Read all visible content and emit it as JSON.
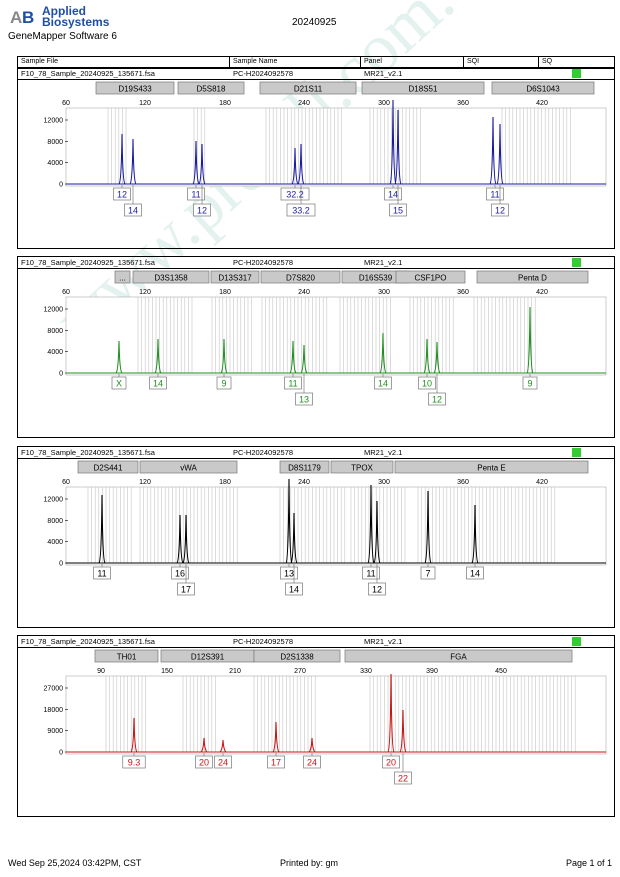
{
  "header": {
    "logo_line1": "Applied",
    "logo_line2": "Biosystems",
    "software": "GeneMapper Software 6",
    "date": "20240925"
  },
  "columns": {
    "sample_file": "Sample File",
    "sample_name": "Sample Name",
    "panel": "Panel",
    "sqi": "SQI",
    "sq": "SQ"
  },
  "watermark": "www.pro-ell.com.cn",
  "colors": {
    "blue": "#1a1aa0",
    "green": "#1f8f1f",
    "black": "#000000",
    "red": "#c81414",
    "status": "#33cc33"
  },
  "panels": [
    {
      "sample_file": "F10_78_Sample_20240925_135671.fsa",
      "sample_name": "PC-H2024092578",
      "panel_name": "MR21_v2.1",
      "color": "#1a1aa0",
      "x_ticks": [
        "60",
        "120",
        "180",
        "240",
        "300",
        "360",
        "420"
      ],
      "y_ticks": [
        "12000",
        "8000",
        "4000",
        "0"
      ],
      "markers": [
        "D19S433",
        "D5S818",
        "D21S11",
        "D18S51",
        "D6S1043"
      ],
      "alleles_top": [
        "12",
        "11",
        "32.2",
        "14",
        "11"
      ],
      "alleles_bottom": [
        "14",
        "12",
        "33.2",
        "15",
        "12"
      ]
    },
    {
      "sample_file": "F10_78_Sample_20240925_135671.fsa",
      "sample_name": "PC-H2024092578",
      "panel_name": "MR21_v2.1",
      "color": "#1f8f1f",
      "x_ticks": [
        "60",
        "120",
        "180",
        "240",
        "300",
        "360",
        "420"
      ],
      "y_ticks": [
        "12000",
        "8000",
        "4000",
        "0"
      ],
      "markers": [
        "...",
        "D3S1358",
        "D13S317",
        "D7S820",
        "D16S539",
        "CSF1PO",
        "Penta D"
      ],
      "alleles_top": [
        "X",
        "14",
        "9",
        "11",
        "14",
        "10",
        "9"
      ],
      "alleles_bottom": [
        "13",
        "12"
      ]
    },
    {
      "sample_file": "F10_78_Sample_20240925_135671.fsa",
      "sample_name": "PC-H2024092578",
      "panel_name": "MR21_v2.1",
      "color": "#000000",
      "x_ticks": [
        "60",
        "120",
        "180",
        "240",
        "300",
        "360",
        "420"
      ],
      "y_ticks": [
        "12000",
        "8000",
        "4000",
        "0"
      ],
      "markers": [
        "D2S441",
        "vWA",
        "D8S1179",
        "TPOX",
        "Penta E"
      ],
      "alleles_top": [
        "11",
        "16",
        "13",
        "11",
        "7",
        "14"
      ],
      "alleles_bottom": [
        "17",
        "14",
        "12"
      ]
    },
    {
      "sample_file": "F10_78_Sample_20240925_135671.fsa",
      "sample_name": "PC-H2024092578",
      "panel_name": "MR21_v2.1",
      "color": "#c81414",
      "x_ticks": [
        "90",
        "150",
        "210",
        "270",
        "330",
        "390",
        "450"
      ],
      "y_ticks": [
        "27000",
        "18000",
        "9000",
        "0"
      ],
      "markers": [
        "TH01",
        "D12S391",
        "D2S1338",
        "FGA"
      ],
      "alleles_top": [
        "9.3",
        "20",
        "24",
        "17",
        "24",
        "20"
      ],
      "alleles_bottom": [
        "22"
      ]
    }
  ],
  "footer": {
    "printed_date": "Wed Sep 25,2024 03:42PM, CST",
    "printed_by": "Printed by: gm",
    "page": "Page 1 of 1"
  }
}
